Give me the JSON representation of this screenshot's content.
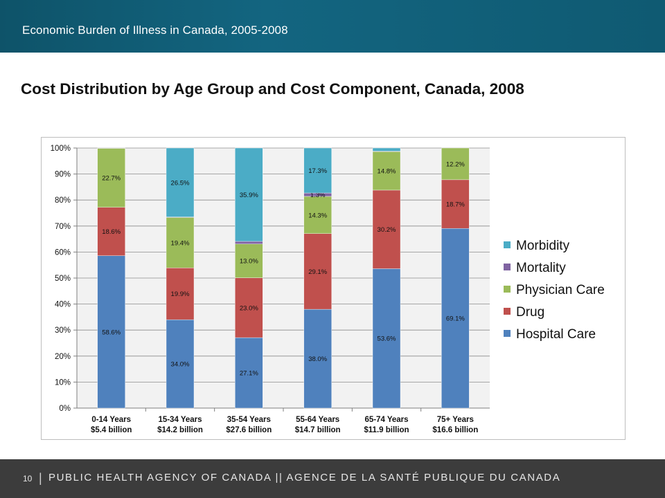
{
  "header": {
    "title": "Economic Burden of Illness in Canada, 2005-2008"
  },
  "slide": {
    "title": "Cost Distribution by Age Group and Cost Component, Canada, 2008"
  },
  "footer": {
    "page_number": "10",
    "separator": "|",
    "text": "PUBLIC HEALTH AGENCY OF CANADA || AGENCE DE LA SANTÉ PUBLIQUE DU CANADA"
  },
  "chart_data": {
    "type": "bar",
    "stacked": true,
    "percent": true,
    "title": "",
    "xlabel": "",
    "ylabel": "",
    "ylim": [
      0,
      100
    ],
    "yticks": [
      "0%",
      "10%",
      "20%",
      "30%",
      "40%",
      "50%",
      "60%",
      "70%",
      "80%",
      "90%",
      "100%"
    ],
    "grid": true,
    "legend_position": "right",
    "categories": [
      [
        "0-14 Years",
        "$5.4 billion"
      ],
      [
        "15-34 Years",
        "$14.2 billion"
      ],
      [
        "35-54 Years",
        "$27.6 billion"
      ],
      [
        "55-64 Years",
        "$14.7 billion"
      ],
      [
        "65-74 Years",
        "$11.9 billion"
      ],
      [
        "75+ Years",
        "$16.6 billion"
      ]
    ],
    "series": [
      {
        "name": "Hospital Care",
        "color": "#4f81bd",
        "values": [
          58.6,
          34.0,
          27.1,
          38.0,
          53.6,
          69.1
        ],
        "labels": [
          "58.6%",
          "34.0%",
          "27.1%",
          "38.0%",
          "53.6%",
          "69.1%"
        ]
      },
      {
        "name": "Drug",
        "color": "#c0504d",
        "values": [
          18.6,
          19.9,
          23.0,
          29.1,
          30.2,
          18.7
        ],
        "labels": [
          "18.6%",
          "19.9%",
          "23.0%",
          "29.1%",
          "30.2%",
          "18.7%"
        ]
      },
      {
        "name": "Physician Care",
        "color": "#9bbb59",
        "values": [
          22.7,
          19.4,
          13.0,
          14.3,
          14.8,
          12.2
        ],
        "labels": [
          "22.7%",
          "19.4%",
          "13.0%",
          "14.3%",
          "14.8%",
          "12.2%"
        ]
      },
      {
        "name": "Mortality",
        "color": "#8064a2",
        "values": [
          0.1,
          0.2,
          1.0,
          1.3,
          0.2,
          0.0
        ],
        "labels": [
          "",
          "",
          "",
          "1.3%",
          "",
          ""
        ]
      },
      {
        "name": "Morbidity",
        "color": "#4bacc6",
        "values": [
          0.0,
          26.5,
          35.9,
          17.3,
          1.2,
          0.0
        ],
        "labels": [
          "",
          "26.5%",
          "35.9%",
          "17.3%",
          "",
          ""
        ]
      }
    ]
  }
}
